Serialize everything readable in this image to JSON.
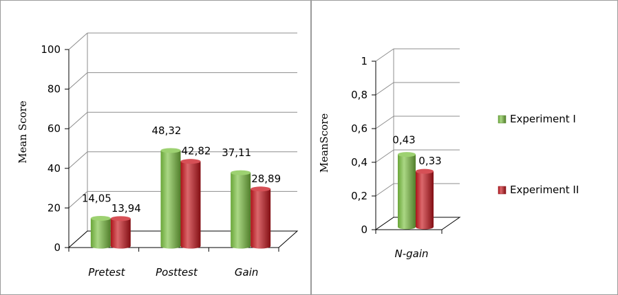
{
  "chart_data": [
    {
      "type": "bar",
      "categories": [
        "Pretest",
        "Posttest",
        "Gain"
      ],
      "series": [
        {
          "name": "Experiment I",
          "values": [
            14.05,
            48.32,
            37.11
          ],
          "labels": [
            "14,05",
            "48,32",
            "37,11"
          ]
        },
        {
          "name": "Experiment II",
          "values": [
            13.94,
            42.82,
            28.89
          ],
          "labels": [
            "13,94",
            "42,82",
            "28,89"
          ]
        }
      ],
      "yticks": [
        "0",
        "20",
        "40",
        "60",
        "80",
        "100"
      ],
      "ylim": [
        0,
        100
      ],
      "ylabel": "Mean Score",
      "xlabel": "",
      "grid": true
    },
    {
      "type": "bar",
      "categories": [
        "N-gain"
      ],
      "series": [
        {
          "name": "Experiment I",
          "values": [
            0.43
          ],
          "labels": [
            "0,43"
          ]
        },
        {
          "name": "Experiment II",
          "values": [
            0.33
          ],
          "labels": [
            "0,33"
          ]
        }
      ],
      "yticks": [
        "0",
        "0,2",
        "0,4",
        "0,6",
        "0,8",
        "1"
      ],
      "ylim": [
        0,
        1
      ],
      "ylabel": "MeanScore",
      "xlabel": "",
      "grid": true,
      "legend": {
        "placement": "right",
        "entries": [
          "Experiment I",
          "Experiment II"
        ]
      }
    }
  ],
  "colors": {
    "experiment_1": "#7cc242",
    "experiment_2": "#c8161d"
  }
}
